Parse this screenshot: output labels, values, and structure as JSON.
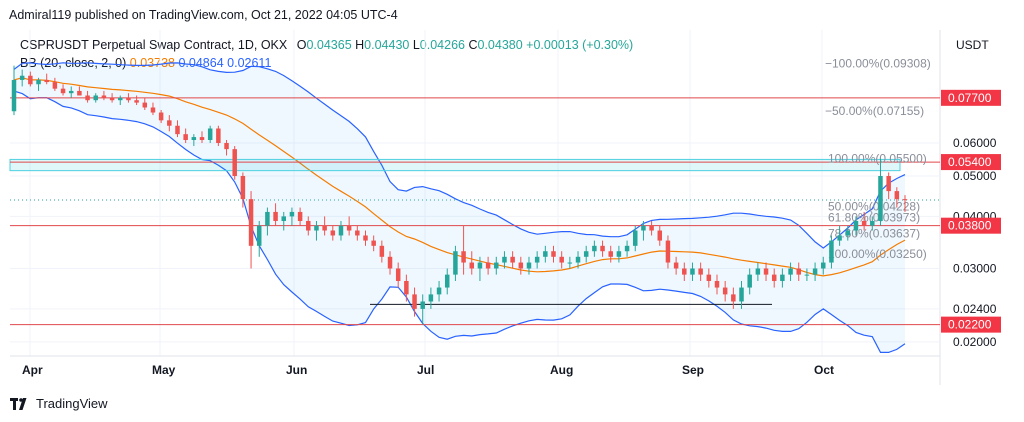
{
  "header": {
    "published_text": "Admiral119 published on TradingView.com, Oct 21, 2022 04:05 UTC-4"
  },
  "symbol": {
    "name": "CSPRUSDT Perpetual Swap Contract, 1D, OKX",
    "open_label": "O",
    "open": "0.04365",
    "high_label": "H",
    "high": "0.04430",
    "low_label": "L",
    "low": "0.04266",
    "close_label": "C",
    "close": "0.04380",
    "change": "+0.00013 (+0.30%)"
  },
  "indicator": {
    "label": "BB (20, close, 2, 0)",
    "basis": "0.03738",
    "upper": "0.04864",
    "lower": "0.02611",
    "basis_color": "#f57c00",
    "band_color": "#2962ff"
  },
  "axis": {
    "currency": "USDT"
  },
  "footer": {
    "brand": "TradingView",
    "logo_icon": "tradingview-logo-icon"
  },
  "colors": {
    "bull": "#26a69a",
    "bear": "#ef5350",
    "level_line": "#e0474c",
    "level_tag_bg": "#f23645",
    "fib_text": "#8a8e99",
    "last_price_color": "#26a69a"
  },
  "chart_data": {
    "type": "candlestick",
    "x_tick_labels": [
      "Apr",
      "May",
      "Jun",
      "Jul",
      "Aug",
      "Sep",
      "Oct"
    ],
    "y_tick_labels": [
      "0.06000",
      "0.05000",
      "0.04000",
      "0.03000",
      "0.02400",
      "0.02000"
    ],
    "y_scale": "log",
    "ylim": [
      0.0185,
      0.112
    ],
    "horizontal_levels": [
      {
        "label": "0.07700",
        "value": 0.077
      },
      {
        "label": "0.05400",
        "value": 0.054
      },
      {
        "label": "0.03800",
        "value": 0.038
      },
      {
        "label": "0.02200",
        "value": 0.022
      }
    ],
    "fib_levels": [
      {
        "label": "−100.00%(0.09308)",
        "value": 0.09308
      },
      {
        "label": "−50.00%(0.07155)",
        "value": 0.07155
      },
      {
        "label": "100.00%(0.05500)",
        "value": 0.055
      },
      {
        "label": "50.00%(0.04228)",
        "value": 0.04228
      },
      {
        "label": "61.80%(0.03973)",
        "value": 0.03973
      },
      {
        "label": "78.60%(0.03637)",
        "value": 0.03637
      },
      {
        "label": "100.00%(0.03250)",
        "value": 0.0325
      }
    ],
    "supply_zone": {
      "from": 0.0515,
      "to": 0.0548
    },
    "support_trendline": {
      "value": 0.0246
    },
    "last_price": 0.0438,
    "grid": true,
    "legend_placement": "top-left",
    "ohlc_sample": [
      [
        0.0715,
        0.092,
        0.07,
        0.085
      ],
      [
        0.085,
        0.09,
        0.082,
        0.087
      ],
      [
        0.087,
        0.089,
        0.082,
        0.083
      ],
      [
        0.083,
        0.086,
        0.08,
        0.085
      ],
      [
        0.085,
        0.088,
        0.083,
        0.084
      ],
      [
        0.084,
        0.086,
        0.08,
        0.081
      ],
      [
        0.081,
        0.083,
        0.078,
        0.079
      ],
      [
        0.079,
        0.082,
        0.077,
        0.08
      ],
      [
        0.08,
        0.082,
        0.078,
        0.078
      ],
      [
        0.078,
        0.08,
        0.075,
        0.076
      ],
      [
        0.076,
        0.079,
        0.075,
        0.078
      ],
      [
        0.078,
        0.08,
        0.076,
        0.077
      ],
      [
        0.077,
        0.079,
        0.075,
        0.076
      ],
      [
        0.076,
        0.078,
        0.074,
        0.077
      ],
      [
        0.077,
        0.079,
        0.075,
        0.076
      ],
      [
        0.076,
        0.078,
        0.074,
        0.075
      ],
      [
        0.075,
        0.077,
        0.072,
        0.073
      ],
      [
        0.073,
        0.075,
        0.07,
        0.071
      ],
      [
        0.071,
        0.072,
        0.067,
        0.068
      ],
      [
        0.068,
        0.07,
        0.064,
        0.066
      ],
      [
        0.066,
        0.068,
        0.062,
        0.063
      ],
      [
        0.063,
        0.065,
        0.06,
        0.061
      ],
      [
        0.061,
        0.063,
        0.059,
        0.062
      ],
      [
        0.062,
        0.064,
        0.06,
        0.061
      ],
      [
        0.061,
        0.066,
        0.06,
        0.065
      ],
      [
        0.065,
        0.066,
        0.059,
        0.06
      ],
      [
        0.06,
        0.061,
        0.056,
        0.058
      ],
      [
        0.058,
        0.059,
        0.049,
        0.05
      ],
      [
        0.05,
        0.051,
        0.042,
        0.044
      ],
      [
        0.044,
        0.046,
        0.03,
        0.034
      ],
      [
        0.034,
        0.039,
        0.032,
        0.038
      ],
      [
        0.038,
        0.042,
        0.036,
        0.041
      ],
      [
        0.041,
        0.043,
        0.038,
        0.039
      ],
      [
        0.039,
        0.041,
        0.037,
        0.04
      ],
      [
        0.04,
        0.042,
        0.038,
        0.041
      ],
      [
        0.041,
        0.042,
        0.038,
        0.039
      ],
      [
        0.039,
        0.04,
        0.036,
        0.037
      ],
      [
        0.037,
        0.039,
        0.035,
        0.038
      ],
      [
        0.038,
        0.04,
        0.036,
        0.037
      ],
      [
        0.037,
        0.038,
        0.035,
        0.036
      ],
      [
        0.036,
        0.039,
        0.035,
        0.038
      ],
      [
        0.038,
        0.04,
        0.036,
        0.037
      ],
      [
        0.037,
        0.038,
        0.035,
        0.036
      ],
      [
        0.036,
        0.037,
        0.034,
        0.035
      ],
      [
        0.035,
        0.036,
        0.033,
        0.034
      ],
      [
        0.034,
        0.035,
        0.031,
        0.032
      ],
      [
        0.032,
        0.033,
        0.029,
        0.03
      ],
      [
        0.03,
        0.031,
        0.027,
        0.028
      ],
      [
        0.028,
        0.029,
        0.025,
        0.026
      ],
      [
        0.026,
        0.027,
        0.023,
        0.024
      ],
      [
        0.024,
        0.026,
        0.022,
        0.025
      ],
      [
        0.025,
        0.027,
        0.024,
        0.026
      ],
      [
        0.026,
        0.028,
        0.025,
        0.027
      ],
      [
        0.027,
        0.03,
        0.026,
        0.029
      ],
      [
        0.029,
        0.034,
        0.028,
        0.033
      ],
      [
        0.033,
        0.038,
        0.029,
        0.031
      ],
      [
        0.031,
        0.033,
        0.029,
        0.03
      ],
      [
        0.03,
        0.032,
        0.028,
        0.031
      ],
      [
        0.031,
        0.032,
        0.029,
        0.03
      ],
      [
        0.03,
        0.032,
        0.029,
        0.031
      ],
      [
        0.031,
        0.033,
        0.03,
        0.032
      ],
      [
        0.032,
        0.033,
        0.03,
        0.031
      ],
      [
        0.031,
        0.032,
        0.029,
        0.03
      ],
      [
        0.03,
        0.032,
        0.029,
        0.031
      ],
      [
        0.031,
        0.033,
        0.03,
        0.032
      ],
      [
        0.032,
        0.034,
        0.031,
        0.033
      ],
      [
        0.033,
        0.034,
        0.031,
        0.032
      ],
      [
        0.032,
        0.033,
        0.03,
        0.031
      ],
      [
        0.031,
        0.032,
        0.03,
        0.031
      ],
      [
        0.031,
        0.033,
        0.03,
        0.032
      ],
      [
        0.032,
        0.034,
        0.031,
        0.033
      ],
      [
        0.033,
        0.035,
        0.032,
        0.034
      ],
      [
        0.034,
        0.035,
        0.032,
        0.033
      ],
      [
        0.033,
        0.034,
        0.031,
        0.032
      ],
      [
        0.032,
        0.034,
        0.031,
        0.033
      ],
      [
        0.033,
        0.035,
        0.032,
        0.034
      ],
      [
        0.034,
        0.038,
        0.033,
        0.037
      ],
      [
        0.037,
        0.039,
        0.035,
        0.038
      ],
      [
        0.038,
        0.039,
        0.036,
        0.037
      ],
      [
        0.037,
        0.038,
        0.034,
        0.035
      ],
      [
        0.035,
        0.036,
        0.03,
        0.031
      ],
      [
        0.031,
        0.032,
        0.029,
        0.03
      ],
      [
        0.03,
        0.031,
        0.028,
        0.029
      ],
      [
        0.029,
        0.031,
        0.028,
        0.03
      ],
      [
        0.03,
        0.031,
        0.028,
        0.029
      ],
      [
        0.029,
        0.03,
        0.027,
        0.028
      ],
      [
        0.028,
        0.029,
        0.026,
        0.027
      ],
      [
        0.027,
        0.028,
        0.025,
        0.026
      ],
      [
        0.026,
        0.027,
        0.024,
        0.025
      ],
      [
        0.025,
        0.028,
        0.024,
        0.027
      ],
      [
        0.027,
        0.03,
        0.026,
        0.029
      ],
      [
        0.029,
        0.031,
        0.028,
        0.03
      ],
      [
        0.03,
        0.031,
        0.028,
        0.029
      ],
      [
        0.029,
        0.03,
        0.027,
        0.028
      ],
      [
        0.028,
        0.03,
        0.027,
        0.029
      ],
      [
        0.029,
        0.031,
        0.028,
        0.03
      ],
      [
        0.03,
        0.031,
        0.028,
        0.029
      ],
      [
        0.029,
        0.03,
        0.028,
        0.029
      ],
      [
        0.029,
        0.031,
        0.028,
        0.03
      ],
      [
        0.03,
        0.032,
        0.029,
        0.031
      ],
      [
        0.031,
        0.036,
        0.03,
        0.035
      ],
      [
        0.035,
        0.038,
        0.034,
        0.036
      ],
      [
        0.036,
        0.038,
        0.035,
        0.037
      ],
      [
        0.037,
        0.04,
        0.036,
        0.039
      ],
      [
        0.039,
        0.041,
        0.037,
        0.038
      ],
      [
        0.038,
        0.04,
        0.037,
        0.039
      ],
      [
        0.039,
        0.055,
        0.038,
        0.05
      ],
      [
        0.05,
        0.051,
        0.044,
        0.046
      ],
      [
        0.046,
        0.047,
        0.042,
        0.044
      ],
      [
        0.044,
        0.045,
        0.041,
        0.0438
      ]
    ]
  }
}
